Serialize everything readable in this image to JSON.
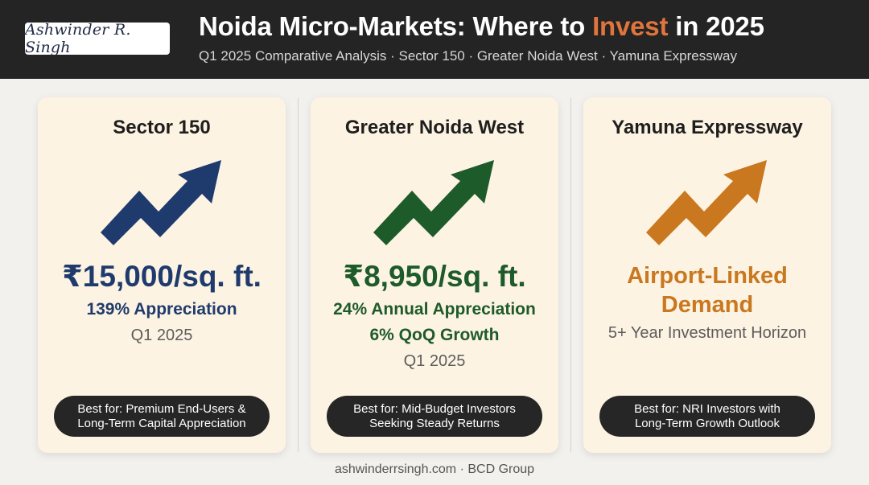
{
  "header": {
    "logo_text": "Ashwinder R. Singh",
    "title_before": "Noida Micro-Markets: Where to ",
    "title_accent": "Invest",
    "title_after": " in 2025",
    "subtitle": "Q1 2025 Comparative Analysis · Sector 150 · Greater Noida West · Yamuna Expressway",
    "accent_color": "#e0743d"
  },
  "cards": [
    {
      "name": "Sector 150",
      "arrow_icon": "trend-up-arrow-icon",
      "arrow_color": "#1f3b6e",
      "price": "₹15,000/sq. ft.",
      "lines": [
        "139% Appreciation"
      ],
      "period": "Q1 2025",
      "best_for": "Best for: Premium End-Users &\nLong-Term Capital Appreciation",
      "color": "#1f3b6e"
    },
    {
      "name": "Greater Noida West",
      "arrow_icon": "trend-up-arrow-icon",
      "arrow_color": "#1e5b2a",
      "price": "₹8,950/sq. ft.",
      "lines": [
        "24% Annual Appreciation",
        "6% QoQ Growth"
      ],
      "period": "Q1 2025",
      "best_for": "Best for: Mid-Budget Investors\nSeeking Steady Returns",
      "color": "#1e5b2a"
    },
    {
      "name": "Yamuna Expressway",
      "arrow_icon": "trend-up-arrow-icon",
      "arrow_color": "#c9781f",
      "headline": "Airport-Linked\nDemand",
      "horizon": "5+ Year Investment Horizon",
      "best_for": "Best for: NRI Investors with\nLong-Term Growth Outlook",
      "color": "#c9781f"
    }
  ],
  "footer": "ashwinderrsingh.com · BCD Group"
}
